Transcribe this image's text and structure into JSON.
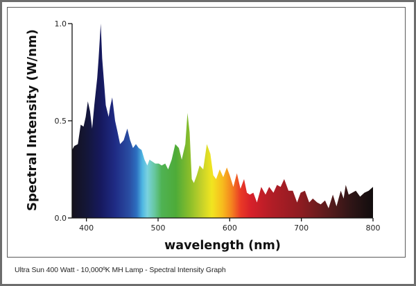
{
  "caption": "Ultra Sun 400 Watt - 10,000ºK MH Lamp - Spectral Intensity Graph",
  "chart_data": {
    "type": "area",
    "title": "",
    "xlabel": "wavelength (nm)",
    "ylabel": "Spectral Intensity (W/nm)",
    "xlim": [
      380,
      800
    ],
    "ylim": [
      0,
      1.0
    ],
    "x_ticks": [
      400,
      500,
      600,
      700,
      800
    ],
    "x_tick_labels": [
      "400",
      "500",
      "600",
      "700",
      "800"
    ],
    "y_ticks": [
      0,
      0.5,
      1.0
    ],
    "y_tick_labels": [
      "0.0",
      "0.5",
      "1.0"
    ],
    "grid": false,
    "fill": "visible-spectrum gradient by wavelength",
    "x": [
      380,
      383,
      388,
      392,
      396,
      399,
      402,
      405,
      408,
      411,
      415,
      417,
      420,
      422,
      427,
      431,
      433,
      436,
      440,
      443,
      447,
      452,
      457,
      461,
      465,
      469,
      473,
      477,
      481,
      485,
      488,
      492,
      496,
      501,
      505,
      510,
      514,
      519,
      524,
      529,
      533,
      538,
      541,
      544,
      547,
      550,
      554,
      558,
      563,
      568,
      573,
      577,
      581,
      586,
      591,
      596,
      600,
      605,
      610,
      615,
      620,
      624,
      628,
      633,
      638,
      644,
      650,
      655,
      661,
      666,
      671,
      676,
      682,
      688,
      694,
      699,
      705,
      711,
      716,
      722,
      727,
      733,
      738,
      744,
      749,
      755,
      759,
      762,
      766,
      771,
      776,
      782,
      788,
      794,
      800
    ],
    "y": [
      0.35,
      0.37,
      0.38,
      0.48,
      0.47,
      0.52,
      0.6,
      0.55,
      0.46,
      0.58,
      0.72,
      0.82,
      1.0,
      0.82,
      0.58,
      0.52,
      0.57,
      0.62,
      0.5,
      0.45,
      0.38,
      0.4,
      0.46,
      0.4,
      0.36,
      0.38,
      0.36,
      0.35,
      0.3,
      0.27,
      0.3,
      0.29,
      0.28,
      0.28,
      0.27,
      0.28,
      0.25,
      0.3,
      0.38,
      0.36,
      0.3,
      0.38,
      0.54,
      0.44,
      0.2,
      0.18,
      0.22,
      0.27,
      0.25,
      0.38,
      0.33,
      0.22,
      0.2,
      0.25,
      0.21,
      0.26,
      0.22,
      0.16,
      0.23,
      0.15,
      0.2,
      0.13,
      0.12,
      0.13,
      0.08,
      0.16,
      0.12,
      0.16,
      0.13,
      0.17,
      0.16,
      0.2,
      0.14,
      0.14,
      0.08,
      0.13,
      0.14,
      0.08,
      0.1,
      0.08,
      0.07,
      0.09,
      0.05,
      0.12,
      0.06,
      0.14,
      0.1,
      0.17,
      0.12,
      0.13,
      0.14,
      0.11,
      0.13,
      0.14,
      0.16
    ]
  }
}
